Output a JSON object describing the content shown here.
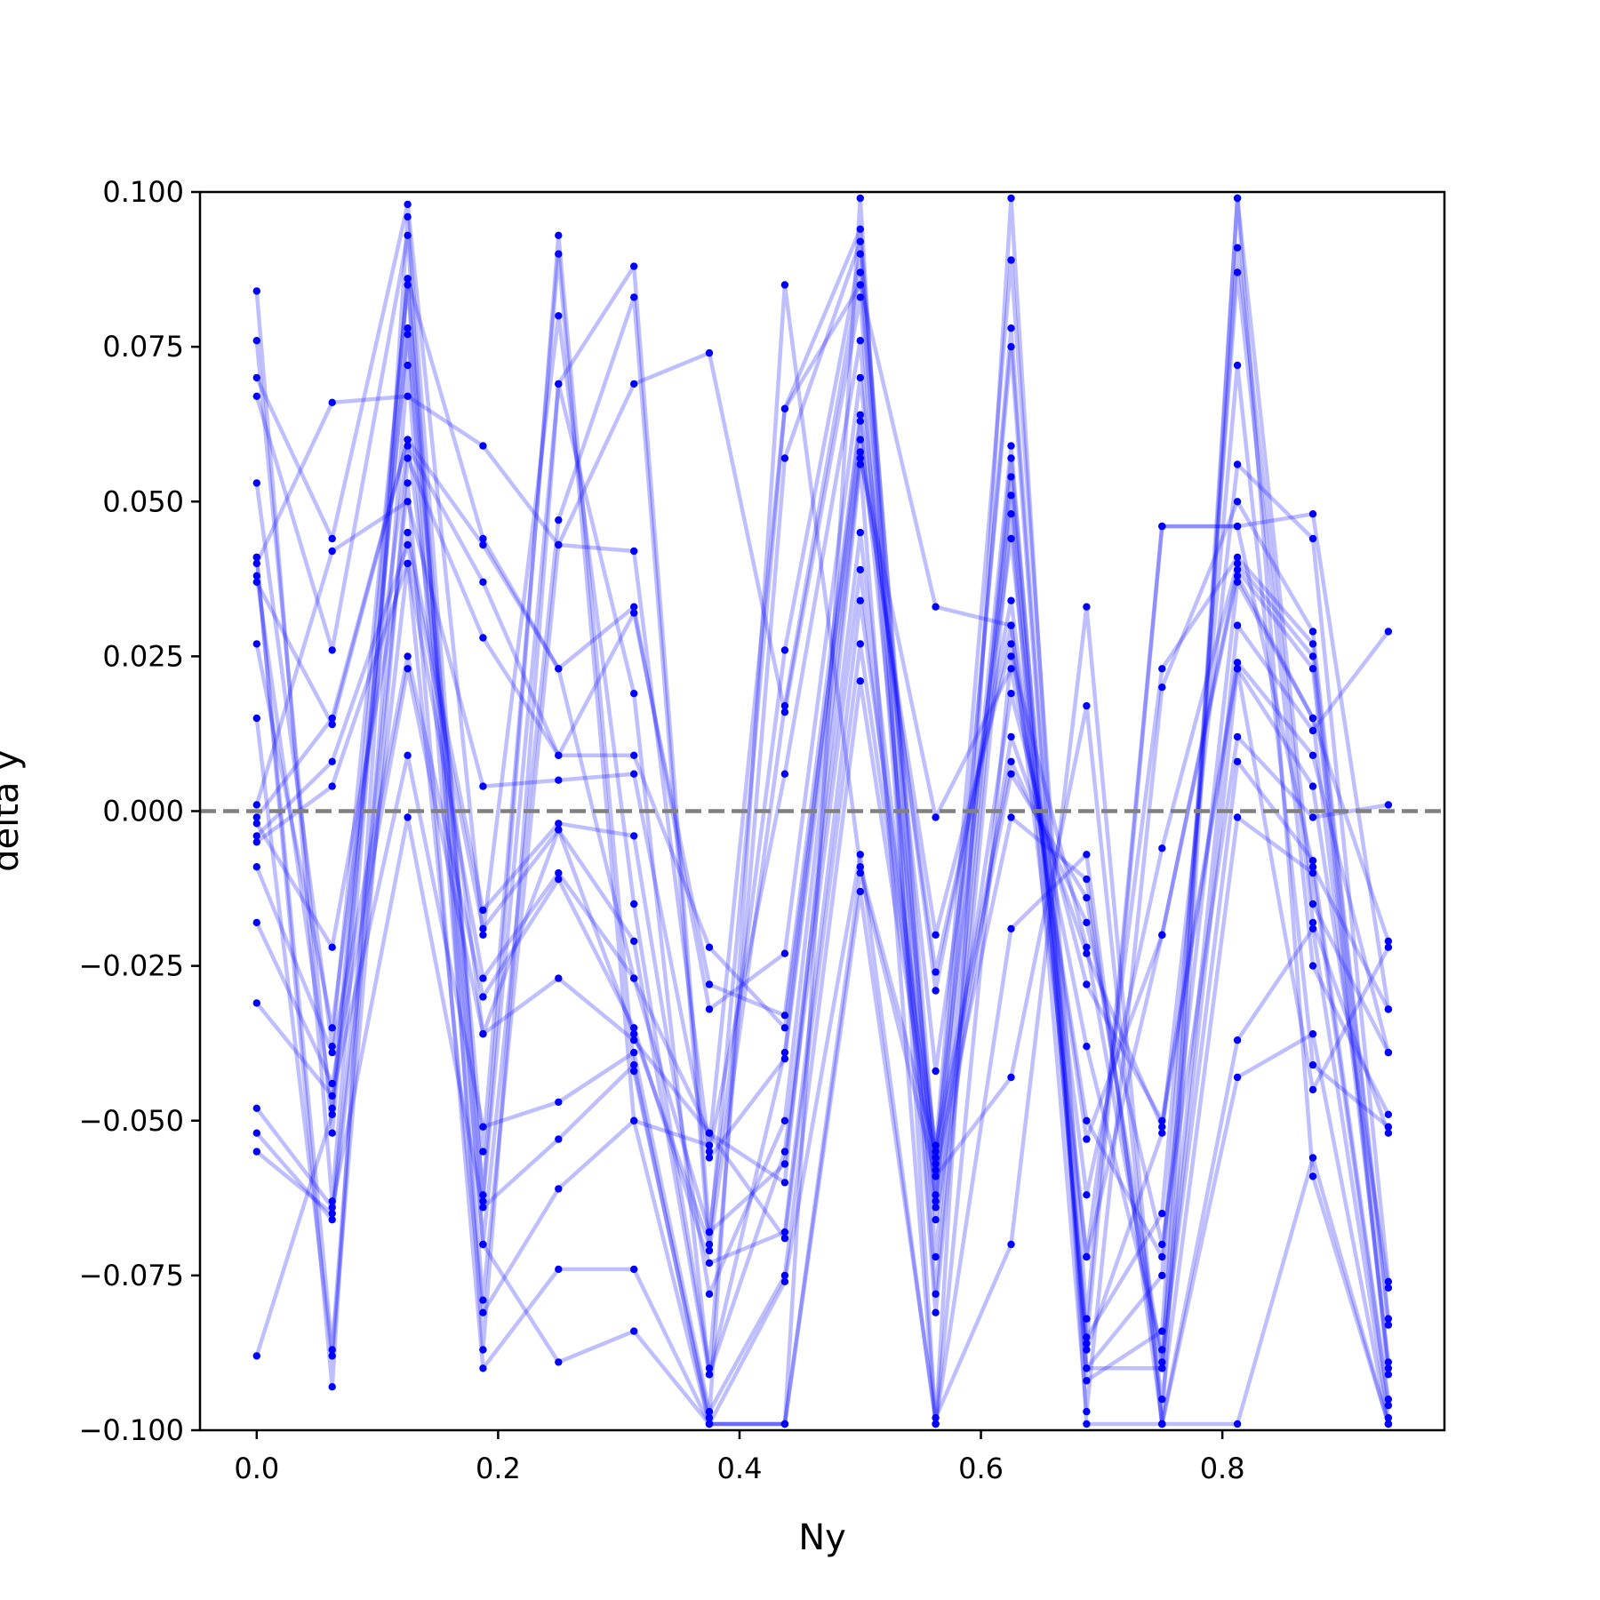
{
  "chart_data": {
    "type": "line",
    "title": "",
    "xlabel": "Ny",
    "ylabel": "delta y",
    "xlim": [
      -0.047,
      0.984
    ],
    "ylim": [
      -0.1,
      0.1
    ],
    "x_ticks": [
      0.0,
      0.2,
      0.4,
      0.6,
      0.8
    ],
    "x_tick_labels": [
      "0.0",
      "0.2",
      "0.4",
      "0.6",
      "0.8"
    ],
    "y_ticks": [
      -0.1,
      -0.075,
      -0.05,
      -0.025,
      0.0,
      0.025,
      0.05,
      0.075,
      0.1
    ],
    "y_tick_labels": [
      "−0.100",
      "−0.075",
      "−0.050",
      "−0.025",
      "0.000",
      "0.025",
      "0.050",
      "0.075",
      "0.100"
    ],
    "x_positions": [
      0.0,
      0.0625,
      0.125,
      0.1875,
      0.25,
      0.3125,
      0.375,
      0.4375,
      0.5,
      0.5625,
      0.625,
      0.6875,
      0.75,
      0.8125,
      0.875,
      0.9375
    ],
    "reference_line": {
      "y": 0.0,
      "style": "dashed",
      "color": "#808080"
    },
    "line_color": "#0000ff",
    "line_opacity": 0.25,
    "marker_color": "#0000ff",
    "grid": false,
    "legend": "none",
    "series": [
      {
        "x": [
          0.0,
          0.0625,
          0.125,
          0.1875,
          0.25,
          0.3125,
          0.375,
          0.4375,
          0.5,
          0.5625,
          0.625,
          0.6875,
          0.75,
          0.8125,
          0.875,
          0.9375
        ],
        "y": [
          0.084,
          -0.063,
          0.086,
          -0.062,
          0.093,
          -0.042,
          -0.098,
          0.085,
          -0.009,
          -0.055,
          0.089,
          -0.082,
          0.046,
          0.046,
          -0.009,
          -0.032
        ]
      },
      {
        "x": [
          0.0,
          0.0625,
          0.125,
          0.1875,
          0.25,
          0.3125,
          0.375,
          0.4375,
          0.5,
          0.5625,
          0.625,
          0.6875,
          0.75,
          0.8125,
          0.875,
          0.9375
        ],
        "y": [
          0.076,
          -0.052,
          0.078,
          -0.055,
          0.09,
          -0.05,
          -0.054,
          0.065,
          0.094,
          -0.063,
          0.078,
          -0.09,
          -0.09,
          0.099,
          -0.015,
          -0.039
        ]
      },
      {
        "x": [
          0.0,
          0.0625,
          0.125,
          0.1875,
          0.25,
          0.3125,
          0.375,
          0.4375,
          0.5,
          0.5625,
          0.625,
          0.6875,
          0.75,
          0.8125,
          0.875,
          0.9375
        ],
        "y": [
          0.07,
          0.044,
          0.098,
          -0.02,
          0.08,
          -0.015,
          -0.09,
          0.057,
          0.092,
          -0.057,
          0.075,
          -0.092,
          -0.084,
          0.091,
          -0.018,
          -0.052
        ]
      },
      {
        "x": [
          0.0,
          0.0625,
          0.125,
          0.1875,
          0.25,
          0.3125,
          0.375,
          0.4375,
          0.5,
          0.5625,
          0.625,
          0.6875,
          0.75,
          0.8125,
          0.875,
          0.9375
        ],
        "y": [
          0.067,
          0.026,
          0.093,
          -0.087,
          0.069,
          0.088,
          -0.068,
          0.026,
          0.09,
          -0.064,
          0.059,
          -0.09,
          -0.075,
          0.087,
          -0.025,
          -0.049
        ]
      },
      {
        "x": [
          0.0,
          0.0625,
          0.125,
          0.1875,
          0.25,
          0.3125,
          0.375,
          0.4375,
          0.5,
          0.5625,
          0.625,
          0.6875,
          0.75,
          0.8125,
          0.875,
          0.9375
        ],
        "y": [
          0.053,
          -0.038,
          0.085,
          -0.07,
          0.047,
          0.083,
          -0.071,
          0.017,
          0.087,
          -0.072,
          0.057,
          -0.085,
          -0.065,
          0.072,
          -0.041,
          -0.051
        ]
      },
      {
        "x": [
          0.0,
          0.0625,
          0.125,
          0.1875,
          0.25,
          0.3125,
          0.375,
          0.4375,
          0.5,
          0.5625,
          0.625,
          0.6875,
          0.75,
          0.8125,
          0.875,
          0.9375
        ],
        "y": [
          0.041,
          -0.087,
          0.072,
          -0.079,
          0.043,
          0.069,
          0.074,
          0.016,
          0.083,
          -0.078,
          0.054,
          -0.087,
          -0.052,
          0.056,
          0.044,
          -0.076
        ]
      },
      {
        "x": [
          0.0,
          0.0625,
          0.125,
          0.1875,
          0.25,
          0.3125,
          0.375,
          0.4375,
          0.5,
          0.5625,
          0.625,
          0.6875,
          0.75,
          0.8125,
          0.875,
          0.9375
        ],
        "y": [
          0.04,
          0.066,
          0.067,
          0.059,
          0.043,
          0.042,
          -0.055,
          0.006,
          0.076,
          -0.081,
          0.048,
          -0.097,
          0.02,
          0.05,
          0.029,
          -0.082
        ]
      },
      {
        "x": [
          0.0,
          0.0625,
          0.125,
          0.1875,
          0.25,
          0.3125,
          0.375,
          0.4375,
          0.5,
          0.5625,
          0.625,
          0.6875,
          0.75,
          0.8125,
          0.875,
          0.9375
        ],
        "y": [
          0.037,
          0.014,
          0.06,
          0.043,
          0.023,
          0.033,
          -0.032,
          -0.023,
          0.07,
          -0.042,
          0.044,
          -0.072,
          0.023,
          0.041,
          0.027,
          -0.083
        ]
      },
      {
        "x": [
          0.0,
          0.0625,
          0.125,
          0.1875,
          0.25,
          0.3125,
          0.375,
          0.4375,
          0.5,
          0.5625,
          0.625,
          0.6875,
          0.75,
          0.8125,
          0.875,
          0.9375
        ],
        "y": [
          0.027,
          -0.035,
          0.059,
          0.037,
          0.009,
          0.032,
          -0.028,
          -0.033,
          0.064,
          -0.029,
          0.034,
          -0.062,
          -0.006,
          0.04,
          0.025,
          -0.09
        ]
      },
      {
        "x": [
          0.0,
          0.0625,
          0.125,
          0.1875,
          0.25,
          0.3125,
          0.375,
          0.4375,
          0.5,
          0.5625,
          0.625,
          0.6875,
          0.75,
          0.8125,
          0.875,
          0.9375
        ],
        "y": [
          0.015,
          -0.088,
          0.057,
          0.028,
          0.009,
          0.009,
          -0.022,
          -0.035,
          0.06,
          -0.026,
          0.03,
          -0.053,
          -0.02,
          0.039,
          0.023,
          -0.091
        ]
      },
      {
        "x": [
          0.0,
          0.0625,
          0.125,
          0.1875,
          0.25,
          0.3125,
          0.375,
          0.4375,
          0.5,
          0.5625,
          0.625,
          0.6875,
          0.75,
          0.8125,
          0.875,
          0.9375
        ],
        "y": [
          0.001,
          0.042,
          0.05,
          0.004,
          0.005,
          0.006,
          -0.056,
          -0.04,
          0.058,
          -0.02,
          0.027,
          -0.05,
          -0.072,
          0.037,
          0.015,
          -0.021
        ]
      },
      {
        "x": [
          0.0,
          0.0625,
          0.125,
          0.1875,
          0.25,
          0.3125,
          0.375,
          0.4375,
          0.5,
          0.5625,
          0.625,
          0.6875,
          0.75,
          0.8125,
          0.875,
          0.9375
        ],
        "y": [
          -0.002,
          -0.022,
          0.045,
          -0.016,
          -0.002,
          -0.004,
          -0.078,
          -0.05,
          0.057,
          -0.001,
          0.023,
          -0.038,
          -0.087,
          0.03,
          0.013,
          0.029
        ]
      },
      {
        "x": [
          0.0,
          0.0625,
          0.125,
          0.1875,
          0.25,
          0.3125,
          0.375,
          0.4375,
          0.5,
          0.5625,
          0.625,
          0.6875,
          0.75,
          0.8125,
          0.875,
          0.9375
        ],
        "y": [
          -0.004,
          0.008,
          0.043,
          -0.019,
          -0.003,
          -0.021,
          -0.091,
          -0.055,
          0.045,
          -0.062,
          0.019,
          -0.028,
          -0.05,
          0.024,
          0.009,
          -0.039
        ]
      },
      {
        "x": [
          0.0,
          0.0625,
          0.125,
          0.1875,
          0.25,
          0.3125,
          0.375,
          0.4375,
          0.5,
          0.5625,
          0.625,
          0.6875,
          0.75,
          0.8125,
          0.875,
          0.9375
        ],
        "y": [
          -0.005,
          0.004,
          0.04,
          -0.027,
          -0.01,
          -0.027,
          -0.068,
          -0.057,
          0.039,
          -0.066,
          0.012,
          -0.023,
          -0.051,
          0.023,
          0.004,
          -0.077
        ]
      },
      {
        "x": [
          0.0,
          0.0625,
          0.125,
          0.1875,
          0.25,
          0.3125,
          0.375,
          0.4375,
          0.5,
          0.5625,
          0.625,
          0.6875,
          0.75,
          0.8125,
          0.875,
          0.9375
        ],
        "y": [
          -0.009,
          -0.039,
          0.025,
          -0.03,
          -0.011,
          -0.035,
          -0.073,
          -0.068,
          0.034,
          -0.054,
          0.008,
          -0.018,
          -0.07,
          0.012,
          -0.001,
          0.001
        ]
      },
      {
        "x": [
          0.0,
          0.0625,
          0.125,
          0.1875,
          0.25,
          0.3125,
          0.375,
          0.4375,
          0.5,
          0.5625,
          0.625,
          0.6875,
          0.75,
          0.8125,
          0.875,
          0.9375
        ],
        "y": [
          -0.018,
          -0.044,
          0.023,
          -0.036,
          -0.027,
          -0.037,
          -0.052,
          -0.069,
          0.027,
          -0.056,
          0.006,
          -0.014,
          -0.089,
          0.008,
          -0.008,
          -0.095
        ]
      },
      {
        "x": [
          0.0,
          0.0625,
          0.125,
          0.1875,
          0.25,
          0.3125,
          0.375,
          0.4375,
          0.5,
          0.5625,
          0.625,
          0.6875,
          0.75,
          0.8125,
          0.875,
          0.9375
        ],
        "y": [
          -0.031,
          -0.046,
          0.009,
          -0.051,
          -0.047,
          -0.039,
          -0.097,
          -0.075,
          0.021,
          -0.058,
          -0.001,
          -0.011,
          -0.095,
          -0.001,
          -0.01,
          -0.096
        ]
      },
      {
        "x": [
          0.0,
          0.0625,
          0.125,
          0.1875,
          0.25,
          0.3125,
          0.375,
          0.4375,
          0.5,
          0.5625,
          0.625,
          0.6875,
          0.75,
          0.8125,
          0.875,
          0.9375
        ],
        "y": [
          -0.048,
          -0.064,
          -0.001,
          -0.064,
          -0.053,
          -0.041,
          -0.099,
          -0.076,
          -0.007,
          -0.099,
          -0.019,
          -0.007,
          -0.099,
          -0.037,
          -0.019,
          -0.098
        ]
      },
      {
        "x": [
          0.0,
          0.0625,
          0.125,
          0.1875,
          0.25,
          0.3125,
          0.375,
          0.4375,
          0.5,
          0.5625,
          0.625,
          0.6875,
          0.75,
          0.8125,
          0.875,
          0.9375
        ],
        "y": [
          -0.052,
          -0.066,
          0.04,
          -0.081,
          -0.061,
          -0.05,
          -0.099,
          -0.099,
          -0.01,
          -0.059,
          -0.043,
          0.017,
          -0.099,
          -0.043,
          -0.036,
          -0.099
        ]
      },
      {
        "x": [
          0.0,
          0.0625,
          0.125,
          0.1875,
          0.25,
          0.3125,
          0.375,
          0.4375,
          0.5,
          0.5625,
          0.625,
          0.6875,
          0.75,
          0.8125,
          0.875,
          0.9375
        ],
        "y": [
          -0.055,
          -0.065,
          0.053,
          -0.09,
          -0.074,
          -0.074,
          -0.099,
          -0.099,
          -0.013,
          -0.098,
          -0.07,
          0.033,
          -0.099,
          -0.099,
          -0.056,
          -0.099
        ]
      },
      {
        "x": [
          0.0,
          0.0625,
          0.125,
          0.1875,
          0.25,
          0.3125,
          0.375,
          0.4375,
          0.5,
          0.5625,
          0.625,
          0.6875,
          0.75,
          0.8125,
          0.875,
          0.9375
        ],
        "y": [
          -0.088,
          -0.049,
          0.077,
          -0.07,
          -0.089,
          -0.084,
          -0.099,
          -0.099,
          0.099,
          -0.099,
          0.099,
          -0.099,
          -0.099,
          0.099,
          -0.059,
          -0.099
        ]
      },
      {
        "x": [
          0.0,
          0.0625,
          0.125,
          0.1875,
          0.25,
          0.3125,
          0.375,
          0.4375,
          0.5,
          0.5625,
          0.625,
          0.6875,
          0.75,
          0.8125,
          0.875,
          0.9375
        ],
        "y": [
          0.041,
          -0.093,
          0.096,
          -0.063,
          0.069,
          0.019,
          -0.091,
          -0.039,
          0.063,
          -0.056,
          0.051,
          -0.086,
          0.046,
          0.046,
          0.048,
          -0.032
        ]
      },
      {
        "x": [
          0.0,
          0.0625,
          0.125,
          0.1875,
          0.25,
          0.3125,
          0.375,
          0.4375,
          0.5,
          0.5625,
          0.625,
          0.6875,
          0.75,
          0.8125,
          0.875,
          0.9375
        ],
        "y": [
          0.038,
          -0.048,
          0.086,
          0.044,
          0.023,
          -0.027,
          -0.052,
          -0.06,
          0.056,
          -0.099,
          0.025,
          -0.022,
          -0.09,
          0.023,
          -0.045,
          -0.022
        ]
      },
      {
        "x": [
          0.0,
          0.0625,
          0.125,
          0.1875,
          0.25,
          0.3125,
          0.375,
          0.4375,
          0.5,
          0.5625,
          0.625,
          0.6875,
          0.75,
          0.8125,
          0.875,
          0.9375
        ],
        "y": [
          -0.001,
          0.015,
          0.06,
          -0.036,
          -0.003,
          -0.036,
          -0.07,
          0.065,
          0.085,
          0.033,
          0.03,
          -0.072,
          -0.02,
          0.038,
          0.015,
          -0.089
        ]
      }
    ]
  }
}
